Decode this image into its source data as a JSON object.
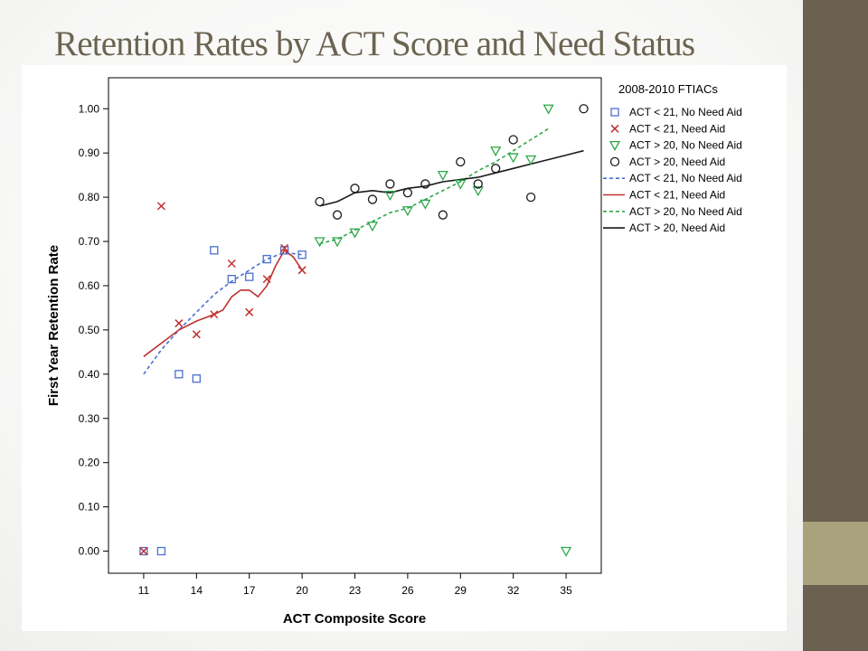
{
  "slide": {
    "title": "Retention Rates by ACT Score and Need Status",
    "colors": {
      "title": "#6b6450",
      "sidebar_dark": "#6b6150",
      "sidebar_light": "#a9a27c"
    }
  },
  "chart_data": {
    "type": "scatter",
    "title": "",
    "xlabel": "ACT Composite Score",
    "ylabel": "First Year Retention Rate",
    "xlim": [
      9,
      37
    ],
    "ylim": [
      -0.05,
      1.07
    ],
    "xticks": [
      11,
      14,
      17,
      20,
      23,
      26,
      29,
      32,
      35
    ],
    "yticks": [
      "0.00",
      "0.10",
      "0.20",
      "0.30",
      "0.40",
      "0.50",
      "0.60",
      "0.70",
      "0.80",
      "0.90",
      "1.00"
    ],
    "grid": false,
    "legend": {
      "title": "2008-2010 FTIACs",
      "placement": "right"
    },
    "series": [
      {
        "name": "ACT < 21, No Need Aid",
        "marker": "square",
        "color": "#4a6fd0",
        "x": [
          11,
          12,
          13,
          14,
          15,
          16,
          17,
          18,
          19,
          20
        ],
        "y": [
          0.0,
          0.0,
          0.4,
          0.39,
          0.68,
          0.615,
          0.62,
          0.66,
          0.68,
          0.67
        ]
      },
      {
        "name": "ACT < 21, Need Aid",
        "marker": "x",
        "color": "#c03030",
        "x": [
          11,
          12,
          13,
          14,
          15,
          16,
          17,
          18,
          19,
          20
        ],
        "y": [
          0.0,
          0.78,
          0.515,
          0.49,
          0.535,
          0.65,
          0.54,
          0.615,
          0.685,
          0.635
        ]
      },
      {
        "name": "ACT > 20, No Need Aid",
        "marker": "triangle-down",
        "color": "#2da84a",
        "x": [
          21,
          22,
          23,
          24,
          25,
          26,
          27,
          28,
          29,
          30,
          31,
          32,
          33,
          34,
          35
        ],
        "y": [
          0.7,
          0.7,
          0.72,
          0.735,
          0.805,
          0.77,
          0.785,
          0.85,
          0.83,
          0.815,
          0.905,
          0.89,
          0.885,
          1.0,
          0.0
        ]
      },
      {
        "name": "ACT > 20, Need Aid",
        "marker": "circle",
        "color": "#1a1a1a",
        "x": [
          21,
          22,
          23,
          24,
          25,
          26,
          27,
          28,
          29,
          30,
          31,
          32,
          33,
          36
        ],
        "y": [
          0.79,
          0.76,
          0.82,
          0.795,
          0.83,
          0.81,
          0.83,
          0.76,
          0.88,
          0.83,
          0.865,
          0.93,
          0.8,
          1.0
        ]
      }
    ],
    "fit_lines": [
      {
        "name": "ACT < 21, No Need Aid",
        "style": "dashed",
        "color": "#4a6fd0",
        "x": [
          11,
          12,
          13,
          14,
          15,
          15.5,
          16,
          17,
          18,
          19,
          20
        ],
        "y": [
          0.4,
          0.455,
          0.5,
          0.54,
          0.58,
          0.595,
          0.61,
          0.635,
          0.66,
          0.675,
          0.67
        ]
      },
      {
        "name": "ACT < 21, Need Aid",
        "style": "solid",
        "color": "#c03030",
        "x": [
          11,
          12,
          13,
          14,
          15,
          15.5,
          16,
          16.5,
          17,
          17.5,
          18,
          18.5,
          19,
          19.5,
          20
        ],
        "y": [
          0.44,
          0.47,
          0.5,
          0.52,
          0.535,
          0.545,
          0.575,
          0.59,
          0.59,
          0.575,
          0.6,
          0.645,
          0.68,
          0.665,
          0.635
        ]
      },
      {
        "name": "ACT > 20, No Need Aid",
        "style": "dashed",
        "color": "#2da84a",
        "x": [
          21,
          22,
          23,
          24,
          25,
          26,
          27,
          28,
          29,
          30,
          31,
          32,
          33,
          34
        ],
        "y": [
          0.695,
          0.705,
          0.725,
          0.745,
          0.765,
          0.775,
          0.795,
          0.815,
          0.835,
          0.86,
          0.88,
          0.905,
          0.93,
          0.955
        ]
      },
      {
        "name": "ACT > 20, Need Aid",
        "style": "solid",
        "color": "#1a1a1a",
        "x": [
          21,
          22,
          23,
          24,
          25,
          26,
          27,
          28,
          29,
          30,
          31,
          32,
          33,
          34,
          35,
          36
        ],
        "y": [
          0.78,
          0.79,
          0.81,
          0.815,
          0.81,
          0.82,
          0.825,
          0.835,
          0.84,
          0.845,
          0.855,
          0.865,
          0.875,
          0.885,
          0.895,
          0.905
        ]
      }
    ]
  }
}
